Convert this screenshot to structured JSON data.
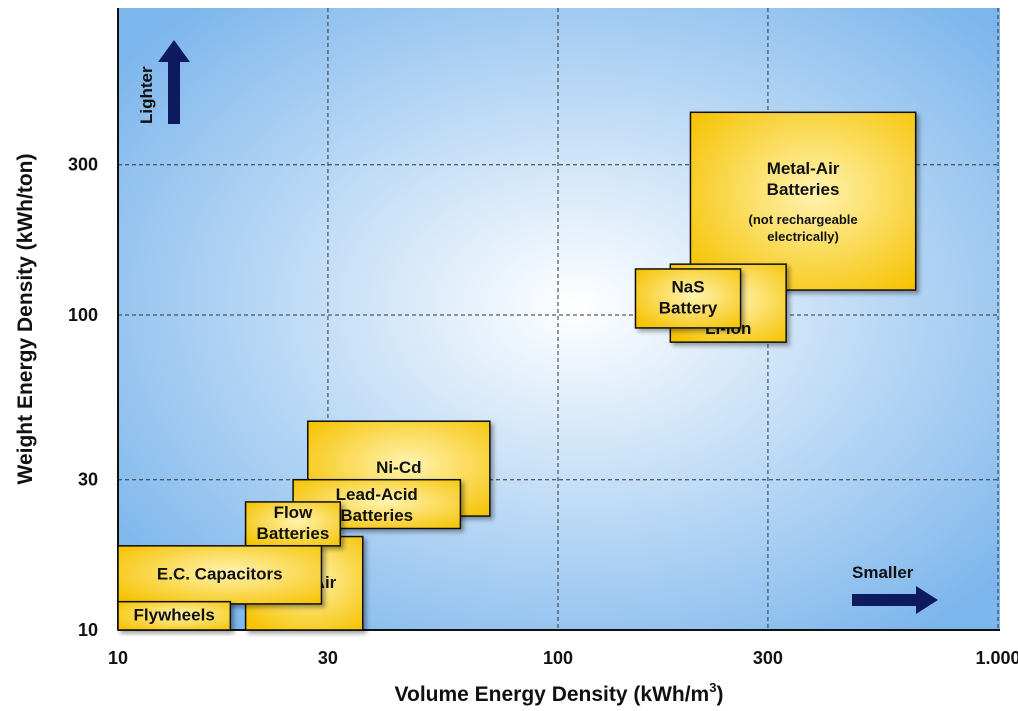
{
  "chart_data": {
    "type": "bar",
    "xlabel": "Volume Energy Density (kWh/m",
    "xlabel_sup": "3",
    "xlabel_tail": ")",
    "ylabel": "Weight Energy Density (kWh/ton)",
    "x_scale": "log",
    "y_scale": "log",
    "xlim": [
      10,
      1000
    ],
    "ylim": [
      10,
      1000
    ],
    "grid": true,
    "x_ticks": [
      {
        "value": 10,
        "label": "10"
      },
      {
        "value": 30,
        "label": "30"
      },
      {
        "value": 100,
        "label": "100"
      },
      {
        "value": 300,
        "label": "300"
      },
      {
        "value": 1000,
        "label": "1.000"
      }
    ],
    "y_ticks": [
      {
        "value": 10,
        "label": "10"
      },
      {
        "value": 30,
        "label": "30"
      },
      {
        "value": 100,
        "label": "100"
      },
      {
        "value": 300,
        "label": "300"
      }
    ],
    "regions": [
      {
        "name": "Metal-Air Batteries",
        "lines": [
          "Metal-Air",
          "Batteries"
        ],
        "note": [
          "(not rechargeable",
          "electrically)"
        ],
        "x": [
          200,
          650
        ],
        "y": [
          120,
          440
        ]
      },
      {
        "name": "Li-ion",
        "lines": [
          "Li-ion"
        ],
        "x": [
          180,
          330
        ],
        "y": [
          82,
          145
        ]
      },
      {
        "name": "NaS Battery",
        "lines": [
          "NaS",
          "Battery"
        ],
        "x": [
          150,
          260
        ],
        "y": [
          91,
          140
        ]
      },
      {
        "name": "Ni-Cd",
        "lines": [
          "Ni-Cd"
        ],
        "x": [
          27,
          70
        ],
        "y": [
          23,
          46
        ]
      },
      {
        "name": "Lead-Acid Batteries",
        "lines": [
          "Lead-Acid",
          "Batteries"
        ],
        "x": [
          25,
          60
        ],
        "y": [
          21,
          30
        ]
      },
      {
        "name": "Zinc-Air",
        "lines": [
          "Zinc-Air"
        ],
        "x": [
          19.5,
          36
        ],
        "y": [
          10,
          19.8
        ]
      },
      {
        "name": "Flow Batteries",
        "lines": [
          "Flow",
          "Batteries"
        ],
        "x": [
          19.5,
          32
        ],
        "y": [
          18.5,
          25.5
        ]
      },
      {
        "name": "E.C. Capacitors",
        "lines": [
          "E.C. Capacitors"
        ],
        "x": [
          10,
          29
        ],
        "y": [
          12.1,
          18.5
        ]
      },
      {
        "name": "Flywheels",
        "lines": [
          "Flywheels"
        ],
        "x": [
          10,
          18
        ],
        "y": [
          10,
          12.3
        ]
      }
    ],
    "annotations": [
      {
        "text": "Lighter",
        "direction": "up"
      },
      {
        "text": "Smaller",
        "direction": "right"
      }
    ],
    "colors": {
      "box_fill_center": "#FFF3B0",
      "box_fill_edge": "#F5C200",
      "box_stroke": "#111111",
      "plot_center": "#FFFFFF",
      "plot_edge": "#7DB6EC",
      "arrow": "#0D1B5E",
      "grid": "#333333"
    }
  }
}
